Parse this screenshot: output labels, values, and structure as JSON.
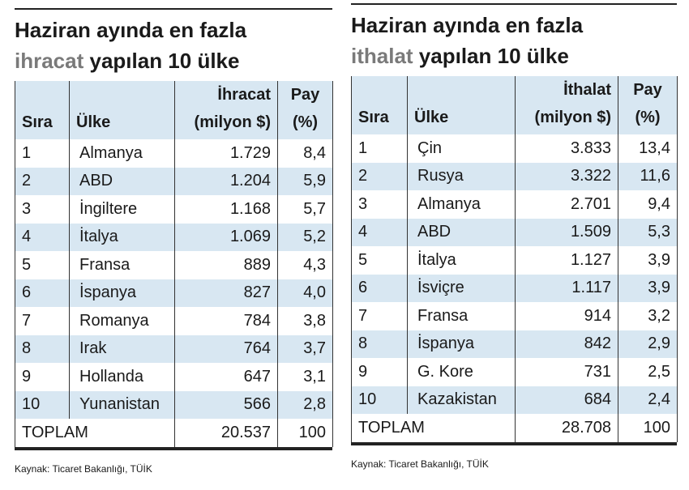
{
  "tables": [
    {
      "title": {
        "line1": "Haziran ayında en fazla",
        "highlight": "ihracat",
        "rest": " yapılan 10 ülke"
      },
      "headers": [
        [
          "Sıra"
        ],
        [
          "Ülke"
        ],
        [
          "İhracat",
          "(milyon $)"
        ],
        [
          "Pay",
          "(%)"
        ]
      ],
      "rows": [
        [
          "1",
          "Almanya",
          "1.729",
          "8,4"
        ],
        [
          "2",
          "ABD",
          "1.204",
          "5,9"
        ],
        [
          "3",
          "İngiltere",
          "1.168",
          "5,7"
        ],
        [
          "4",
          "İtalya",
          "1.069",
          "5,2"
        ],
        [
          "5",
          "Fransa",
          "889",
          "4,3"
        ],
        [
          "6",
          "İspanya",
          "827",
          "4,0"
        ],
        [
          "7",
          "Romanya",
          "784",
          "3,8"
        ],
        [
          "8",
          "Irak",
          "764",
          "3,7"
        ],
        [
          "9",
          "Hollanda",
          "647",
          "3,1"
        ],
        [
          "10",
          "Yunanistan",
          "566",
          "2,8"
        ]
      ],
      "total": [
        "TOPLAM",
        "20.537",
        "100"
      ],
      "source": "Kaynak: Ticaret Bakanlığı, TÜİK"
    },
    {
      "title": {
        "line1": "Haziran ayında en fazla",
        "highlight": "ithalat",
        "rest": " yapılan 10 ülke"
      },
      "headers": [
        [
          "Sıra"
        ],
        [
          "Ülke"
        ],
        [
          "İthalat",
          "(milyon $)"
        ],
        [
          "Pay",
          "(%)"
        ]
      ],
      "rows": [
        [
          "1",
          "Çin",
          "3.833",
          "13,4"
        ],
        [
          "2",
          "Rusya",
          "3.322",
          "11,6"
        ],
        [
          "3",
          "Almanya",
          "2.701",
          "9,4"
        ],
        [
          "4",
          "ABD",
          "1.509",
          "5,3"
        ],
        [
          "5",
          "İtalya",
          "1.127",
          "3,9"
        ],
        [
          "6",
          "İsviçre",
          "1.117",
          "3,9"
        ],
        [
          "7",
          "Fransa",
          "914",
          "3,2"
        ],
        [
          "8",
          "İspanya",
          "842",
          "2,9"
        ],
        [
          "9",
          "G. Kore",
          "731",
          "2,5"
        ],
        [
          "10",
          "Kazakistan",
          "684",
          "2,4"
        ]
      ],
      "total": [
        "TOPLAM",
        "28.708",
        "100"
      ],
      "source": "Kaynak: Ticaret Bakanlığı, TÜİK"
    }
  ]
}
